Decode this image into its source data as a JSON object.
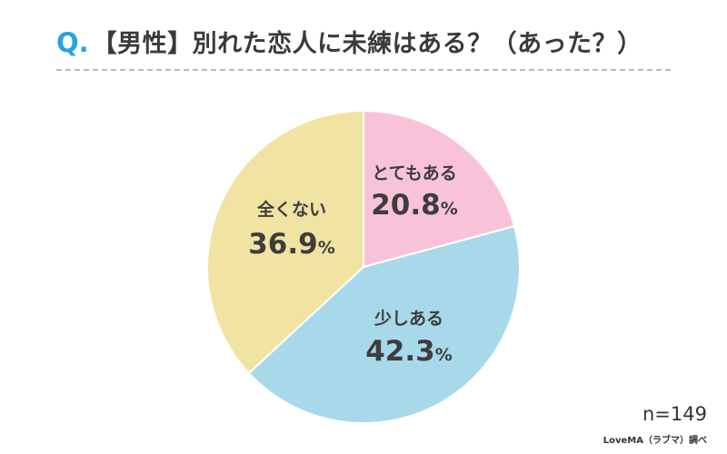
{
  "header": {
    "q_mark": "Q.",
    "title": "【男性】別れた恋人に未練はある？（あった？）"
  },
  "footer": {
    "sample_size": "n=149",
    "source": "LoveMA（ラブマ）調べ"
  },
  "chart_data": {
    "type": "pie",
    "title": "【男性】別れた恋人に未練はある？（あった？）",
    "unit": "%",
    "start_angle": "12 o'clock, clockwise",
    "categories": [
      "とてもある",
      "少しある",
      "全くない"
    ],
    "values": [
      20.8,
      42.3,
      36.9
    ],
    "value_labels": [
      "20.8",
      "42.3",
      "36.9"
    ],
    "colors": [
      "#f8c3d9",
      "#a7d9ea",
      "#f1e3a2"
    ],
    "slice_border_color": "#ffffff"
  }
}
